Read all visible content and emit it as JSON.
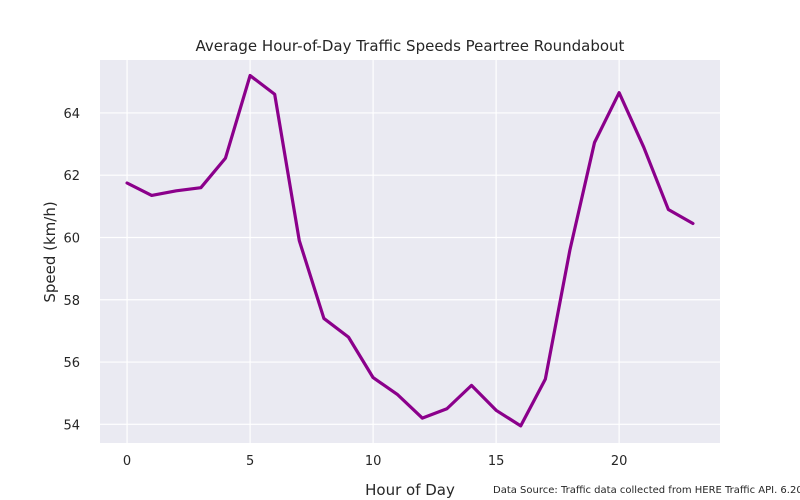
{
  "chart_data": {
    "type": "line",
    "title": "Average Hour-of-Day Traffic Speeds Peartree Roundabout",
    "xlabel": "Hour of Day",
    "ylabel": "Speed (km/h)",
    "xlim": [
      -1.1,
      24.1
    ],
    "ylim": [
      53.4,
      65.7
    ],
    "xticks": [
      0,
      5,
      10,
      15,
      20
    ],
    "yticks": [
      54,
      56,
      58,
      60,
      62,
      64
    ],
    "grid": true,
    "series": [
      {
        "color": "#8b008b",
        "x": [
          0,
          1,
          2,
          3,
          4,
          5,
          6,
          7,
          8,
          9,
          10,
          11,
          12,
          13,
          14,
          15,
          16,
          17,
          18,
          19,
          20,
          21,
          22,
          23
        ],
        "y": [
          61.75,
          61.35,
          61.5,
          61.6,
          62.55,
          65.2,
          64.6,
          59.9,
          57.4,
          56.8,
          55.5,
          54.95,
          54.2,
          54.5,
          55.25,
          54.45,
          53.95,
          55.45,
          59.6,
          63.05,
          64.65,
          62.9,
          60.9,
          60.45
        ]
      }
    ]
  },
  "source_note": "Data Source: Traffic data collected from HERE Traffic API. 6.20",
  "colors": {
    "plot_background": "#eaeaf2",
    "grid": "#ffffff",
    "text": "#262626"
  }
}
